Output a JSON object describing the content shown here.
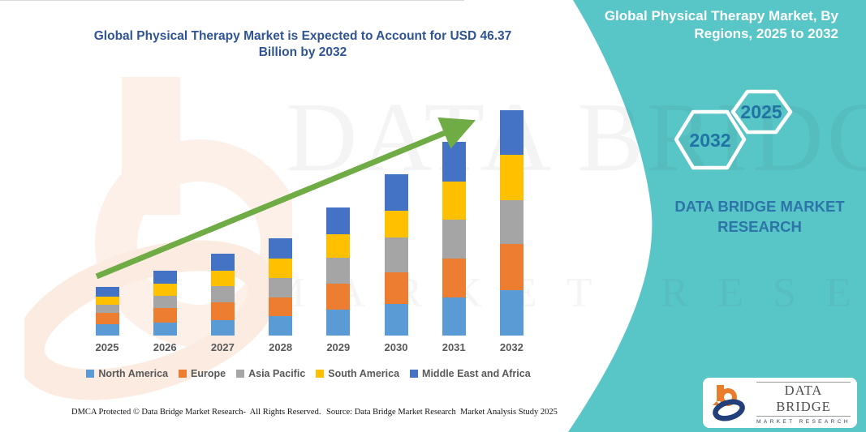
{
  "colors": {
    "panel_teal": "#58C5C7",
    "title_blue": "#2F5496",
    "hexagon_text_blue": "#2173A4",
    "caption_blue": "#2D74A8",
    "axis_label_gray": "#595959",
    "trend_arrow_green": "#6FAC46"
  },
  "header": {
    "chart_title": "Global Physical Therapy Market is Expected to Account for USD 46.37 Billion by 2032",
    "panel_title": "Global Physical Therapy Market, By Regions, 2025 to 2032"
  },
  "side_panel": {
    "hexagons": [
      {
        "label": "2032"
      },
      {
        "label": "2025"
      }
    ],
    "brand_caption": "DATA BRIDGE MARKET RESEARCH"
  },
  "chart_data": {
    "type": "bar",
    "stacked": true,
    "unit": "USD Billion",
    "title": "Global Physical Therapy Market is Expected to Account for USD 46.37 Billion by 2032",
    "categories": [
      "2025",
      "2026",
      "2027",
      "2028",
      "2029",
      "2030",
      "2031",
      "2032"
    ],
    "series": [
      {
        "name": "North America",
        "color": "#5B9BD5",
        "values": [
          2.3,
          2.7,
          3.2,
          4.0,
          5.3,
          6.5,
          7.9,
          9.4
        ]
      },
      {
        "name": "Europe",
        "color": "#ED7D31",
        "values": [
          2.3,
          3.0,
          3.7,
          3.9,
          5.4,
          6.5,
          8.0,
          9.4
        ]
      },
      {
        "name": "Asia Pacific",
        "color": "#A5A5A5",
        "values": [
          1.7,
          2.5,
          3.2,
          3.9,
          5.3,
          7.2,
          7.9,
          9.1
        ]
      },
      {
        "name": "South America",
        "color": "#FFC000",
        "values": [
          1.7,
          2.5,
          3.2,
          4.1,
          4.8,
          5.5,
          7.9,
          9.3
        ]
      },
      {
        "name": "Middle East and Africa",
        "color": "#4472C4",
        "values": [
          2.0,
          2.7,
          3.5,
          4.1,
          5.6,
          7.4,
          8.1,
          9.17
        ]
      }
    ],
    "totals": [
      10.0,
      13.4,
      16.8,
      20.0,
      26.4,
      33.1,
      39.8,
      46.37
    ],
    "highlight_value_2032": 46.37,
    "xlabel": "",
    "ylabel": "",
    "y_axis_visible": false,
    "grid": false,
    "legend_position": "bottom",
    "annotations": [
      {
        "type": "trend-arrow",
        "direction": "up-right",
        "color": "#6FAC46"
      }
    ]
  },
  "watermark": {
    "line1": "DATA BRIDGE",
    "line2": "MARKET RESEARCH"
  },
  "footer": {
    "left": "DMCA Protected © Data Bridge Market Research-  All Rights Reserved.",
    "right": "Source: Data Bridge Market Research  Market Analysis Study 2025"
  },
  "logo_card": {
    "brand": "DATA BRIDGE",
    "sub": "MARKET RESEARCH"
  }
}
